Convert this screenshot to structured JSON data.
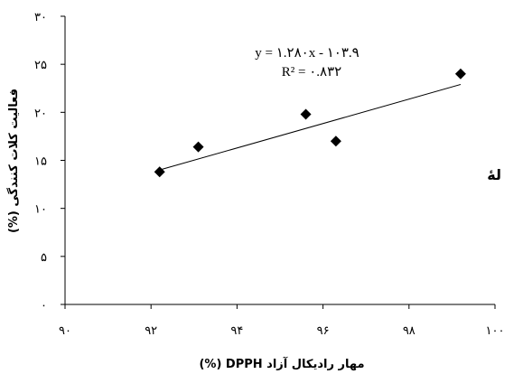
{
  "chart_data": {
    "type": "scatter",
    "title": "",
    "xlabel": "مهار رادیکال آزاد DPPH (%)",
    "ylabel": "فعالیت کلات کنندگی (%)",
    "xlim": [
      90,
      100
    ],
    "ylim": [
      0,
      30
    ],
    "x_ticks": [
      90,
      92,
      94,
      96,
      98,
      100
    ],
    "y_ticks": [
      0,
      5,
      10,
      15,
      20,
      25,
      30
    ],
    "x_tick_labels": [
      "۹۰",
      "۹۲",
      "۹۴",
      "۹۶",
      "۹۸",
      "۱۰۰"
    ],
    "y_tick_labels": [
      "۰",
      "۵",
      "۱۰",
      "۱۵",
      "۲۰",
      "۲۵",
      "۳۰"
    ],
    "grid": false,
    "legend": "none",
    "marker": "diamond",
    "marker_color": "#000000",
    "points": [
      {
        "x": 92.2,
        "y": 13.8
      },
      {
        "x": 93.1,
        "y": 16.4
      },
      {
        "x": 95.6,
        "y": 19.8
      },
      {
        "x": 96.3,
        "y": 17.0
      },
      {
        "x": 99.2,
        "y": 24.0
      }
    ],
    "trendline": {
      "type": "linear",
      "x_range": [
        92.2,
        99.2
      ],
      "y_range": [
        14.0,
        22.9
      ],
      "equation": "y = ۱.۲۸۰x - ۱۰۳.۹",
      "r_squared": "R² = ۰.۸۳۲"
    },
    "clipped_text": "لهٔ"
  }
}
